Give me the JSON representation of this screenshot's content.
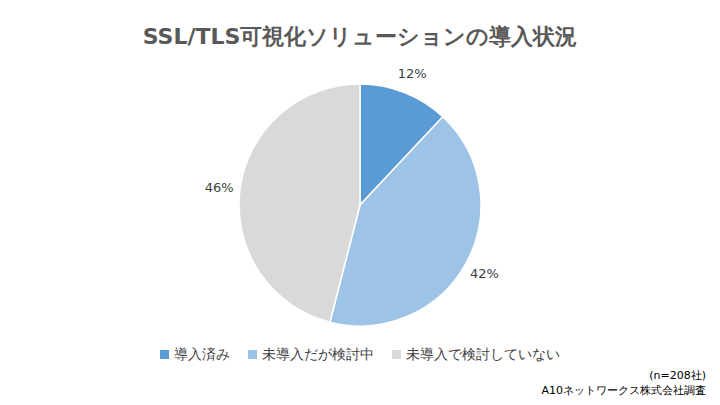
{
  "chart_data": {
    "type": "pie",
    "title": "SSL/TLS可視化ソリューションの導入状況",
    "categories": [
      "導入済み",
      "未導入だが検討中",
      "未導入で検討していない"
    ],
    "values": [
      12,
      42,
      46
    ],
    "value_labels": [
      "12%",
      "42%",
      "46%"
    ],
    "colors": [
      "#5b9bd5",
      "#9dc3e6",
      "#d9d9d9"
    ],
    "data_labels": true,
    "legend": "bottom",
    "annotations": [
      "(n=208社)",
      "A10ネットワークス株式会社調査"
    ]
  }
}
